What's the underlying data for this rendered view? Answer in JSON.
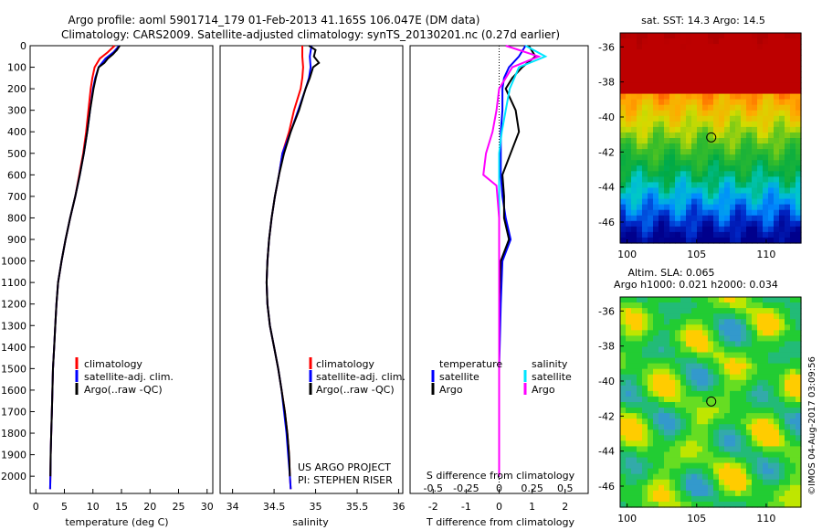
{
  "header": {
    "line1": "Argo profile: aoml 5901714_179 01-Feb-2013 41.165S 106.047E (DM data)",
    "line2": "Climatology: CARS2009. Satellite-adjusted climatology: synTS_20130201.nc (0.27d earlier)"
  },
  "colors": {
    "climatology": "#ff0000",
    "satellite": "#0000ff",
    "argo": "#000000",
    "sat_salinity": "#00e5ff",
    "argo_salinity": "#ff00ff"
  },
  "credits": {
    "project": "US ARGO PROJECT",
    "pi": "PI: STEPHEN RISER",
    "timestamp": "©IMOS 04-Aug-2017 03:09:56"
  },
  "chart_data": [
    {
      "type": "line",
      "name": "temperature-profile",
      "xlabel": "temperature (deg C)",
      "ylabel": "",
      "xlim": [
        -1,
        31
      ],
      "ylim": [
        2080,
        0
      ],
      "xticks": [
        "0",
        "5",
        "10",
        "15",
        "20",
        "25",
        "30"
      ],
      "yticks": [
        "0",
        "100",
        "200",
        "300",
        "400",
        "500",
        "600",
        "700",
        "800",
        "900",
        "1000",
        "1100",
        "1200",
        "1300",
        "1400",
        "1500",
        "1600",
        "1700",
        "1800",
        "1900",
        "2000"
      ],
      "legend": [
        "climatology",
        "satellite-adj. clim.",
        "Argo(..raw -QC)"
      ],
      "series": [
        {
          "name": "climatology",
          "depth": [
            0,
            30,
            60,
            100,
            150,
            200,
            300,
            400,
            500,
            600,
            700,
            800,
            900,
            1000,
            1100,
            1200,
            1300,
            1400,
            1500,
            1600,
            1700,
            1800,
            1900,
            2000,
            2060
          ],
          "values": [
            13.8,
            12.6,
            11.2,
            10.3,
            9.9,
            9.6,
            9.2,
            8.8,
            8.3,
            7.6,
            6.9,
            6.0,
            5.2,
            4.5,
            3.9,
            3.6,
            3.4,
            3.2,
            3.0,
            2.9,
            2.8,
            2.7,
            2.6,
            2.55,
            2.5
          ]
        },
        {
          "name": "satellite-adj. clim.",
          "depth": [
            0,
            30,
            60,
            100,
            150,
            200,
            300,
            400,
            500,
            600,
            700,
            800,
            900,
            1000,
            1100,
            1200,
            1300,
            1400,
            1500,
            1600,
            1700,
            1800,
            1900,
            2000,
            2060
          ],
          "values": [
            14.6,
            13.6,
            12.2,
            11.0,
            10.4,
            10.0,
            9.5,
            9.0,
            8.4,
            7.7,
            6.9,
            6.0,
            5.2,
            4.5,
            3.9,
            3.6,
            3.4,
            3.2,
            3.0,
            2.9,
            2.8,
            2.7,
            2.6,
            2.55,
            2.5
          ]
        },
        {
          "name": "Argo(..raw -QC)",
          "depth": [
            0,
            20,
            40,
            60,
            80,
            100,
            150,
            200,
            300,
            400,
            500,
            600,
            700,
            800,
            900,
            1000,
            1100,
            1200,
            1300,
            1400,
            1500,
            1600,
            1700,
            1800,
            1900,
            2000
          ],
          "values": [
            14.7,
            14.2,
            13.5,
            12.6,
            12.0,
            11.0,
            10.5,
            10.1,
            9.5,
            9.0,
            8.4,
            7.7,
            6.9,
            6.0,
            5.2,
            4.5,
            3.9,
            3.6,
            3.4,
            3.2,
            3.0,
            2.9,
            2.8,
            2.7,
            2.6,
            2.55
          ]
        }
      ]
    },
    {
      "type": "line",
      "name": "salinity-profile",
      "xlabel": "salinity",
      "xlim": [
        33.85,
        36.05
      ],
      "ylim": [
        2080,
        0
      ],
      "xticks": [
        "34",
        "34.5",
        "35",
        "35.5",
        "36"
      ],
      "legend": [
        "climatology",
        "satellite-adj. clim.",
        "Argo(..raw -QC)"
      ],
      "series": [
        {
          "name": "climatology",
          "depth": [
            0,
            50,
            100,
            150,
            200,
            300,
            400,
            500,
            600,
            700,
            800,
            900,
            1000,
            1100,
            1200,
            1300,
            1400,
            1500,
            1600,
            1700,
            1800,
            1900,
            2000,
            2060
          ],
          "values": [
            34.84,
            34.84,
            34.85,
            34.84,
            34.82,
            34.74,
            34.68,
            34.6,
            34.56,
            34.51,
            34.47,
            34.44,
            34.42,
            34.41,
            34.42,
            34.45,
            34.5,
            34.55,
            34.59,
            34.63,
            34.66,
            34.68,
            34.69,
            34.7
          ]
        },
        {
          "name": "satellite-adj. clim.",
          "depth": [
            0,
            50,
            100,
            150,
            200,
            300,
            400,
            500,
            600,
            700,
            800,
            900,
            1000,
            1100,
            1200,
            1300,
            1400,
            1500,
            1600,
            1700,
            1800,
            1900,
            2000,
            2060
          ],
          "values": [
            34.95,
            34.93,
            34.94,
            34.92,
            34.88,
            34.79,
            34.7,
            34.6,
            34.56,
            34.51,
            34.47,
            34.44,
            34.42,
            34.41,
            34.42,
            34.45,
            34.5,
            34.55,
            34.59,
            34.62,
            34.65,
            34.67,
            34.69,
            34.7
          ]
        },
        {
          "name": "Argo(..raw -QC)",
          "depth": [
            0,
            20,
            50,
            80,
            100,
            150,
            200,
            300,
            400,
            500,
            600,
            700,
            800,
            900,
            1000,
            1100,
            1200,
            1300,
            1400,
            1500,
            1600,
            1700,
            1800,
            1900,
            2000
          ],
          "values": [
            34.92,
            35.0,
            34.98,
            35.04,
            34.97,
            34.93,
            34.88,
            34.8,
            34.7,
            34.62,
            34.56,
            34.51,
            34.47,
            34.44,
            34.42,
            34.41,
            34.42,
            34.45,
            34.5,
            34.55,
            34.59,
            34.63,
            34.66,
            34.68,
            34.69
          ]
        }
      ]
    },
    {
      "type": "line",
      "name": "difference-profile",
      "xlabel": "T difference from climatology",
      "xlabel_top": "S difference from climatology",
      "xlim": [
        -2.7,
        2.7
      ],
      "ylim": [
        2080,
        0
      ],
      "xticks": [
        "-2",
        "-1",
        "0",
        "1",
        "2"
      ],
      "xticks_s": [
        "-0.5",
        "-0.25",
        "0",
        "0.25",
        "0.5"
      ],
      "legend_title_t": "temperature",
      "legend_title_s": "salinity",
      "legend_t": [
        "satellite",
        "Argo"
      ],
      "legend_s": [
        "satellite",
        "Argo"
      ],
      "series": [
        {
          "name": "T satellite",
          "depth": [
            0,
            50,
            100,
            150,
            200,
            300,
            400,
            500,
            600,
            700,
            800,
            900,
            1000,
            1200,
            1500,
            1800,
            2000
          ],
          "values": [
            0.8,
            0.6,
            0.3,
            0.15,
            0.1,
            0.1,
            0.05,
            0.05,
            0.05,
            0.1,
            0.2,
            0.35,
            0.1,
            0.05,
            0.0,
            0.0,
            0.0
          ]
        },
        {
          "name": "T Argo",
          "depth": [
            0,
            50,
            100,
            150,
            200,
            300,
            400,
            500,
            600,
            700,
            800,
            900,
            1000,
            1200,
            1500,
            1800,
            2000
          ],
          "values": [
            0.9,
            1.1,
            0.7,
            0.4,
            0.2,
            0.5,
            0.6,
            0.35,
            0.1,
            0.15,
            0.15,
            0.3,
            0.05,
            0.0,
            0.0,
            0.0,
            0.0
          ]
        },
        {
          "name": "S satellite",
          "depth": [
            0,
            50,
            100,
            200,
            300,
            400,
            500,
            600,
            800,
            1000,
            1200,
            1500,
            1800,
            2000
          ],
          "values": [
            0.2,
            0.35,
            0.15,
            0.08,
            0.05,
            0.02,
            0.0,
            0.0,
            0.0,
            0.0,
            0.0,
            0.0,
            0.0,
            0.0
          ]
        },
        {
          "name": "S Argo",
          "depth": [
            0,
            50,
            100,
            150,
            200,
            300,
            400,
            500,
            600,
            650,
            800,
            1000,
            1200,
            1500,
            1800,
            2000
          ],
          "values": [
            0.05,
            0.3,
            0.1,
            0.05,
            0.0,
            -0.02,
            -0.05,
            -0.1,
            -0.12,
            -0.02,
            0.0,
            0.0,
            0.0,
            0.0,
            0.0,
            0.0
          ]
        }
      ]
    },
    {
      "type": "heatmap",
      "name": "sst-map",
      "title": "sat. SST: 14.3 Argo: 14.5",
      "xlim": [
        99.5,
        112.5
      ],
      "ylim": [
        -47.2,
        -35.2
      ],
      "xticks": [
        "100",
        "105",
        "110"
      ],
      "yticks": [
        "-36",
        "-38",
        "-40",
        "-42",
        "-44",
        "-46"
      ],
      "marker": {
        "lon": 106.047,
        "lat": -41.165
      }
    },
    {
      "type": "heatmap",
      "name": "sla-map",
      "title1": "Altim. SLA: 0.065",
      "title2": "Argo h1000: 0.021 h2000: 0.034",
      "xlim": [
        99.5,
        112.5
      ],
      "ylim": [
        -47.2,
        -35.2
      ],
      "xticks": [
        "100",
        "105",
        "110"
      ],
      "yticks": [
        "-36",
        "-38",
        "-40",
        "-42",
        "-44",
        "-46"
      ],
      "marker": {
        "lon": 106.047,
        "lat": -41.165
      }
    }
  ]
}
